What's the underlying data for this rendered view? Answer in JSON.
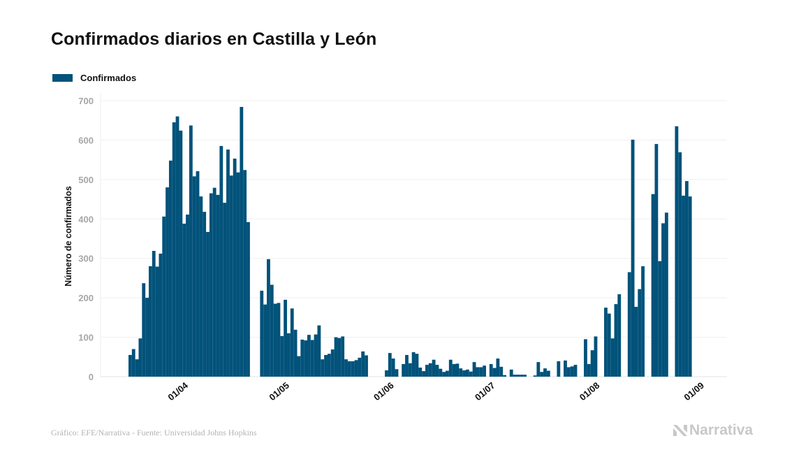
{
  "title": "Confirmados diarios en Castilla y León",
  "legend": {
    "label": "Confirmados",
    "color": "#02527a"
  },
  "source": "Gráfico: EFE/Narrativa - Fuente: Universidad Johns Hopkins",
  "brand": {
    "name": "Narrativa",
    "icon": "narrativa-logo-icon"
  },
  "chart_data": {
    "type": "bar",
    "title": "Confirmados diarios en Castilla y León",
    "xlabel": "",
    "ylabel": "Número de confirmados",
    "ylim": [
      0,
      700
    ],
    "yticks": [
      0,
      100,
      200,
      300,
      400,
      500,
      600,
      700
    ],
    "grid": true,
    "legend_position": "top-left",
    "bar_color": "#02527a",
    "start_date": "15/03",
    "x_domain_days": 178,
    "xticks": [
      {
        "label": "01/04",
        "day": 17
      },
      {
        "label": "01/05",
        "day": 47
      },
      {
        "label": "01/06",
        "day": 78
      },
      {
        "label": "01/07",
        "day": 108
      },
      {
        "label": "01/08",
        "day": 139
      },
      {
        "label": "01/09",
        "day": 170
      }
    ],
    "series": [
      {
        "name": "Confirmados",
        "values": [
          55,
          70,
          44,
          97,
          237,
          200,
          280,
          319,
          279,
          312,
          406,
          480,
          548,
          645,
          660,
          624,
          388,
          411,
          637,
          508,
          521,
          457,
          418,
          367,
          465,
          479,
          461,
          585,
          441,
          576,
          510,
          553,
          518,
          684,
          524,
          392,
          0,
          0,
          0,
          218,
          183,
          298,
          233,
          185,
          187,
          103,
          195,
          110,
          173,
          119,
          52,
          94,
          92,
          106,
          93,
          107,
          130,
          44,
          55,
          58,
          69,
          100,
          98,
          102,
          44,
          39,
          39,
          42,
          48,
          64,
          54,
          0,
          0,
          0,
          0,
          0,
          16,
          60,
          46,
          19,
          0,
          32,
          55,
          34,
          62,
          58,
          23,
          14,
          30,
          34,
          43,
          30,
          20,
          12,
          15,
          43,
          32,
          33,
          21,
          16,
          18,
          13,
          37,
          24,
          24,
          28,
          0,
          32,
          22,
          46,
          25,
          4,
          0,
          18,
          5,
          5,
          5,
          5,
          0,
          0,
          3,
          37,
          12,
          21,
          15,
          0,
          0,
          39,
          0,
          41,
          24,
          26,
          30,
          0,
          0,
          95,
          32,
          67,
          102,
          0,
          0,
          175,
          160,
          97,
          184,
          209,
          0,
          0,
          265,
          601,
          177,
          222,
          280,
          0,
          0,
          463,
          590,
          293,
          389,
          416,
          0,
          0,
          635,
          569,
          459,
          496,
          457
        ]
      }
    ]
  }
}
